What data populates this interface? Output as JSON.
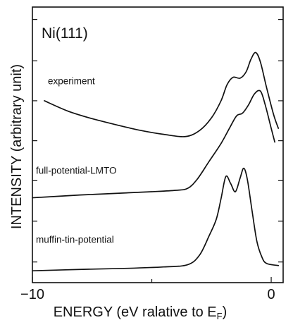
{
  "chart_data": {
    "type": "line",
    "title": "Ni(111)",
    "xlabel": "ENERGY (eV ralative to E",
    "xlabel_sub": "F",
    "xlabel_close": ")",
    "ylabel": "INTENSITY (arbitrary unit)",
    "xlim": [
      -10,
      0.5
    ],
    "x_ticks": [
      {
        "value": -10,
        "label": "−10"
      },
      {
        "value": 0,
        "label": "0"
      }
    ],
    "x_minor_ticks": [
      -5
    ],
    "ylim": [
      0,
      10
    ],
    "y_ticks": [
      0.75,
      2.23,
      3.7,
      5.15,
      6.6,
      8.05,
      9.55
    ],
    "grid": false,
    "legend": "none",
    "line_color": "#111111",
    "series": [
      {
        "name": "experiment",
        "label_at": [
          -9.5,
          7.2
        ],
        "points": [
          [
            -9.5,
            6.6
          ],
          [
            -8.5,
            6.22
          ],
          [
            -7.5,
            5.95
          ],
          [
            -6.5,
            5.73
          ],
          [
            -5.5,
            5.53
          ],
          [
            -4.5,
            5.38
          ],
          [
            -3.6,
            5.3
          ],
          [
            -3.0,
            5.52
          ],
          [
            -2.5,
            5.98
          ],
          [
            -2.1,
            6.6
          ],
          [
            -1.85,
            7.18
          ],
          [
            -1.6,
            7.45
          ],
          [
            -1.3,
            7.42
          ],
          [
            -1.05,
            7.65
          ],
          [
            -0.85,
            8.1
          ],
          [
            -0.65,
            8.35
          ],
          [
            -0.45,
            8.0
          ],
          [
            -0.2,
            7.1
          ],
          [
            0.1,
            6.1
          ],
          [
            0.3,
            5.6
          ]
        ]
      },
      {
        "name": "full-potential-LMTO",
        "label_at": [
          -10,
          3.95
        ],
        "points": [
          [
            -10,
            3.08
          ],
          [
            -9,
            3.13
          ],
          [
            -8,
            3.18
          ],
          [
            -7,
            3.22
          ],
          [
            -6,
            3.26
          ],
          [
            -5,
            3.3
          ],
          [
            -4,
            3.35
          ],
          [
            -3.5,
            3.42
          ],
          [
            -3.1,
            3.75
          ],
          [
            -2.6,
            4.4
          ],
          [
            -2.1,
            5.05
          ],
          [
            -1.75,
            5.6
          ],
          [
            -1.45,
            6.05
          ],
          [
            -1.2,
            6.15
          ],
          [
            -0.95,
            6.45
          ],
          [
            -0.7,
            6.85
          ],
          [
            -0.45,
            6.95
          ],
          [
            -0.25,
            6.45
          ],
          [
            0.0,
            5.6
          ],
          [
            0.15,
            5.1
          ]
        ]
      },
      {
        "name": "muffin-tin-potential",
        "label_at": [
          -10,
          1.45
        ],
        "points": [
          [
            -10,
            0.43
          ],
          [
            -8,
            0.48
          ],
          [
            -6,
            0.52
          ],
          [
            -4.5,
            0.57
          ],
          [
            -3.5,
            0.65
          ],
          [
            -3.0,
            1.0
          ],
          [
            -2.6,
            1.7
          ],
          [
            -2.3,
            2.3
          ],
          [
            -2.1,
            3.05
          ],
          [
            -1.9,
            3.85
          ],
          [
            -1.7,
            3.6
          ],
          [
            -1.5,
            3.3
          ],
          [
            -1.3,
            3.8
          ],
          [
            -1.15,
            4.15
          ],
          [
            -1.0,
            3.75
          ],
          [
            -0.8,
            2.6
          ],
          [
            -0.6,
            1.5
          ],
          [
            -0.4,
            0.95
          ],
          [
            -0.2,
            0.7
          ],
          [
            0.3,
            0.62
          ]
        ]
      }
    ]
  }
}
